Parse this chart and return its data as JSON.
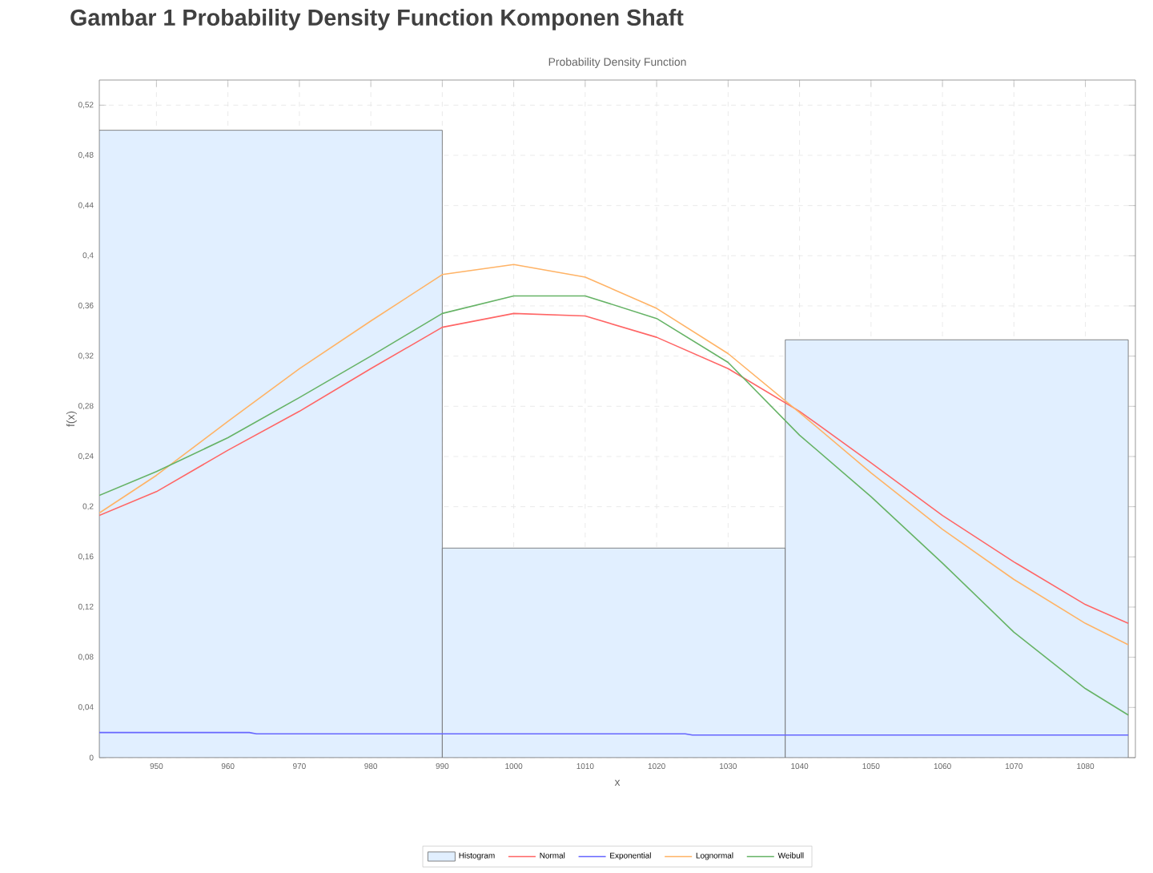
{
  "chart_data": {
    "type": "histogram",
    "title": "Probability Density Function",
    "annotations": [
      "Gambar 1 Probability Density Function Komponen Shaft"
    ],
    "xlabel": "x",
    "ylabel": "f(x)",
    "xlim": [
      942,
      1087
    ],
    "ylim": [
      0,
      0.54
    ],
    "xticks": [
      950,
      960,
      970,
      980,
      990,
      1000,
      1010,
      1020,
      1030,
      1040,
      1050,
      1060,
      1070,
      1080
    ],
    "yticks": [
      {
        "value": 0,
        "label": "0"
      },
      {
        "value": 0.04,
        "label": "0,04"
      },
      {
        "value": 0.08,
        "label": "0,08"
      },
      {
        "value": 0.12,
        "label": "0,12"
      },
      {
        "value": 0.16,
        "label": "0,16"
      },
      {
        "value": 0.2,
        "label": "0,2"
      },
      {
        "value": 0.24,
        "label": "0,24"
      },
      {
        "value": 0.28,
        "label": "0,28"
      },
      {
        "value": 0.32,
        "label": "0,32"
      },
      {
        "value": 0.36,
        "label": "0,36"
      },
      {
        "value": 0.4,
        "label": "0,4"
      },
      {
        "value": 0.44,
        "label": "0,44"
      },
      {
        "value": 0.48,
        "label": "0,48"
      },
      {
        "value": 0.52,
        "label": "0,52"
      }
    ],
    "grid": true,
    "legend": "bottom",
    "marker": "none",
    "line_style": "solid",
    "series": [
      {
        "name": "Histogram",
        "color": "#e1efff",
        "bins": [
          942,
          990,
          1038,
          1086
        ],
        "values": [
          0.5,
          0.167,
          0.333
        ]
      },
      {
        "name": "Normal",
        "type": "line",
        "color": "#ff6666",
        "x": [
          942,
          950,
          960,
          970,
          980,
          990,
          1000,
          1010,
          1020,
          1030,
          1040,
          1050,
          1060,
          1070,
          1080,
          1086
        ],
        "values": [
          0.193,
          0.212,
          0.245,
          0.276,
          0.31,
          0.343,
          0.354,
          0.352,
          0.335,
          0.31,
          0.276,
          0.235,
          0.193,
          0.156,
          0.122,
          0.107
        ]
      },
      {
        "name": "Exponential",
        "type": "line",
        "color": "#6666ff",
        "x": [
          942,
          963,
          964,
          1024,
          1025,
          1086
        ],
        "values": [
          0.02,
          0.02,
          0.019,
          0.019,
          0.018,
          0.018
        ]
      },
      {
        "name": "Lognormal",
        "type": "line",
        "color": "#ffb366",
        "x": [
          942,
          950,
          960,
          970,
          980,
          990,
          1000,
          1010,
          1020,
          1030,
          1040,
          1050,
          1060,
          1070,
          1080,
          1086
        ],
        "values": [
          0.195,
          0.225,
          0.268,
          0.31,
          0.348,
          0.385,
          0.393,
          0.383,
          0.358,
          0.322,
          0.275,
          0.227,
          0.182,
          0.142,
          0.107,
          0.09
        ]
      },
      {
        "name": "Weibull",
        "type": "line",
        "color": "#66b366",
        "x": [
          942,
          950,
          960,
          970,
          980,
          990,
          1000,
          1010,
          1020,
          1030,
          1040,
          1050,
          1060,
          1070,
          1080,
          1086
        ],
        "values": [
          0.209,
          0.228,
          0.255,
          0.287,
          0.32,
          0.354,
          0.368,
          0.368,
          0.35,
          0.315,
          0.257,
          0.208,
          0.155,
          0.1,
          0.055,
          0.034
        ]
      }
    ]
  }
}
